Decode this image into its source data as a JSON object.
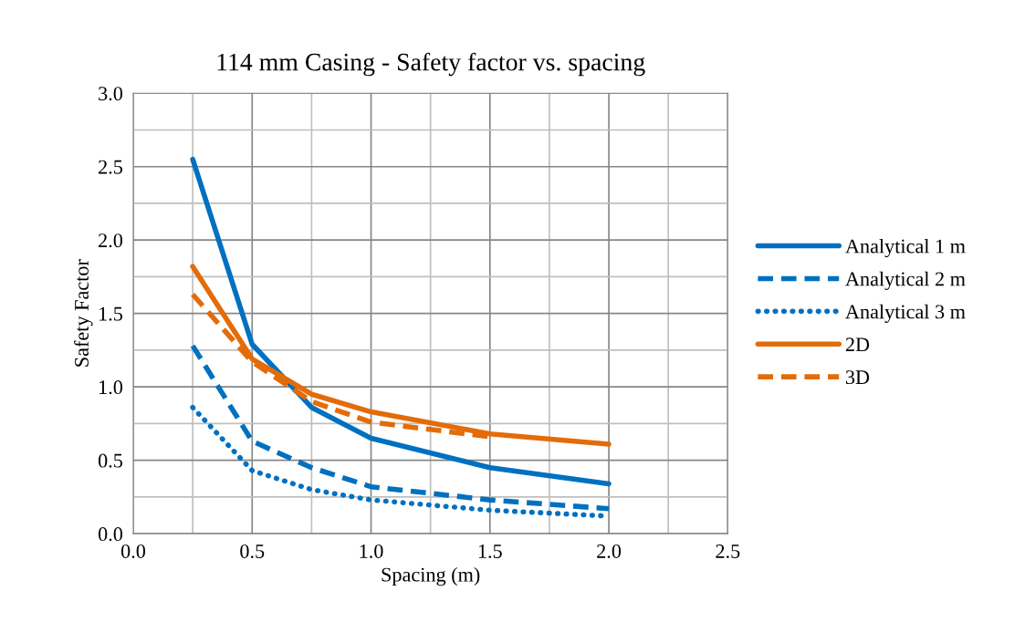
{
  "chart_data": {
    "type": "line",
    "title": "114 mm Casing - Safety factor vs. spacing",
    "xlabel": "Spacing (m)",
    "ylabel": "Safety Factor",
    "xlim": [
      0,
      2.5
    ],
    "xticks": [
      {
        "value": 0,
        "label": "0.0"
      },
      0.5,
      {
        "value": 1,
        "label": "1.0"
      },
      1.5,
      {
        "value": 2,
        "label": "2.0"
      },
      2.5
    ],
    "ylim": [
      0,
      3
    ],
    "yticks": [
      {
        "value": 0,
        "label": "0.0"
      },
      0.5,
      {
        "value": 1,
        "label": "1.0"
      },
      1.5,
      {
        "value": 2,
        "label": "2.0"
      },
      2.5,
      {
        "value": 3,
        "label": "3.0"
      }
    ],
    "grid": true,
    "legend": "right",
    "marker": "none",
    "series": [
      {
        "name": "Analytical 1 m",
        "color": "#0070c0",
        "line_style": "solid",
        "x": [
          0.25,
          0.5,
          0.75,
          1.0,
          1.5,
          2.0
        ],
        "values": [
          2.55,
          1.29,
          0.86,
          0.65,
          0.45,
          0.34
        ]
      },
      {
        "name": "Analytical 2 m",
        "color": "#0070c0",
        "line_style": "dashed",
        "x": [
          0.25,
          0.5,
          0.75,
          1.0,
          1.5,
          2.0
        ],
        "values": [
          1.28,
          0.63,
          0.45,
          0.32,
          0.23,
          0.17
        ]
      },
      {
        "name": "Analytical 3 m",
        "color": "#0070c0",
        "line_style": "dotted",
        "x": [
          0.25,
          0.5,
          0.75,
          1.0,
          1.5,
          2.0
        ],
        "values": [
          0.86,
          0.43,
          0.3,
          0.23,
          0.16,
          0.12
        ]
      },
      {
        "name": "2D",
        "color": "#e36c09",
        "line_style": "solid",
        "x": [
          0.25,
          0.5,
          0.75,
          1.0,
          1.5,
          2.0
        ],
        "values": [
          1.82,
          1.19,
          0.95,
          0.83,
          0.68,
          0.61
        ]
      },
      {
        "name": "3D",
        "color": "#e36c09",
        "line_style": "dashed",
        "x": [
          0.25,
          0.5,
          0.75,
          1.0,
          1.5
        ],
        "values": [
          1.63,
          1.17,
          0.9,
          0.76,
          0.66
        ]
      }
    ]
  }
}
